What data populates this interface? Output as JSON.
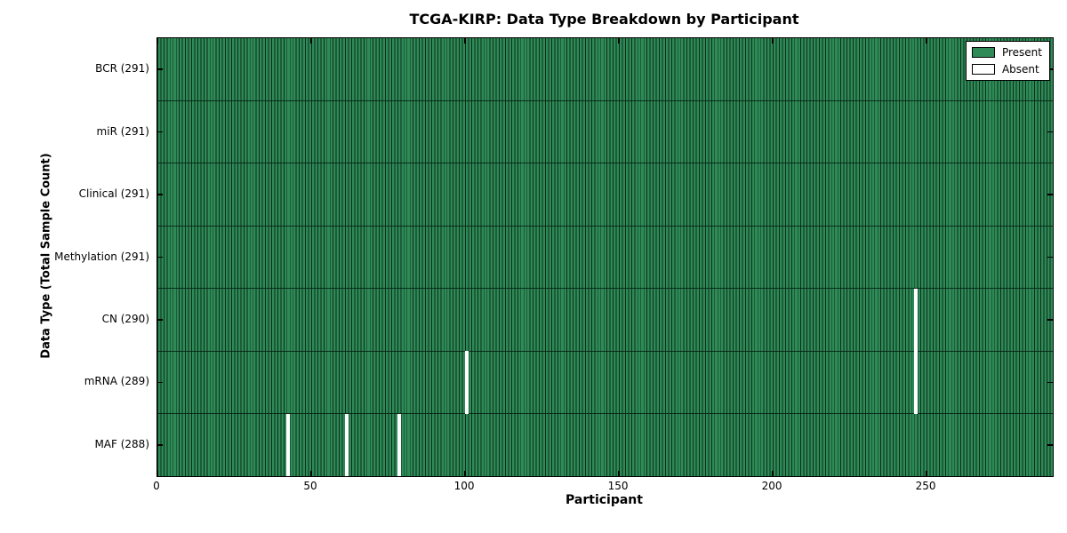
{
  "chart_data": {
    "type": "heatmap",
    "title": "TCGA-KIRP: Data Type Breakdown by Participant",
    "xlabel": "Participant",
    "ylabel": "Data Type (Total Sample Count)",
    "n_participants": 291,
    "x_range": [
      0,
      291
    ],
    "x_ticks": [
      0,
      50,
      100,
      150,
      200,
      250
    ],
    "grid": false,
    "legend_position": "upper right",
    "legend": [
      {
        "label": "Present",
        "color": "#2e8b57"
      },
      {
        "label": "Absent",
        "color": "#ffffff"
      }
    ],
    "rows": [
      {
        "data_type": "BCR",
        "label": "BCR (291)",
        "present_count": 291,
        "absent_participants": []
      },
      {
        "data_type": "miR",
        "label": "miR (291)",
        "present_count": 291,
        "absent_participants": []
      },
      {
        "data_type": "Clinical",
        "label": "Clinical (291)",
        "present_count": 291,
        "absent_participants": []
      },
      {
        "data_type": "Methylation",
        "label": "Methylation (291)",
        "present_count": 291,
        "absent_participants": []
      },
      {
        "data_type": "CN",
        "label": "CN (290)",
        "present_count": 290,
        "absent_participants": [
          246
        ]
      },
      {
        "data_type": "mRNA",
        "label": "mRNA (289)",
        "present_count": 289,
        "absent_participants": [
          100,
          246
        ]
      },
      {
        "data_type": "MAF",
        "label": "MAF (288)",
        "present_count": 288,
        "absent_participants": [
          42,
          61,
          78
        ]
      }
    ]
  },
  "colors": {
    "present": "#2e8b57",
    "absent": "#ffffff",
    "bar_edge": "#0c2c1a",
    "axis": "#000000",
    "background": "#ffffff"
  }
}
